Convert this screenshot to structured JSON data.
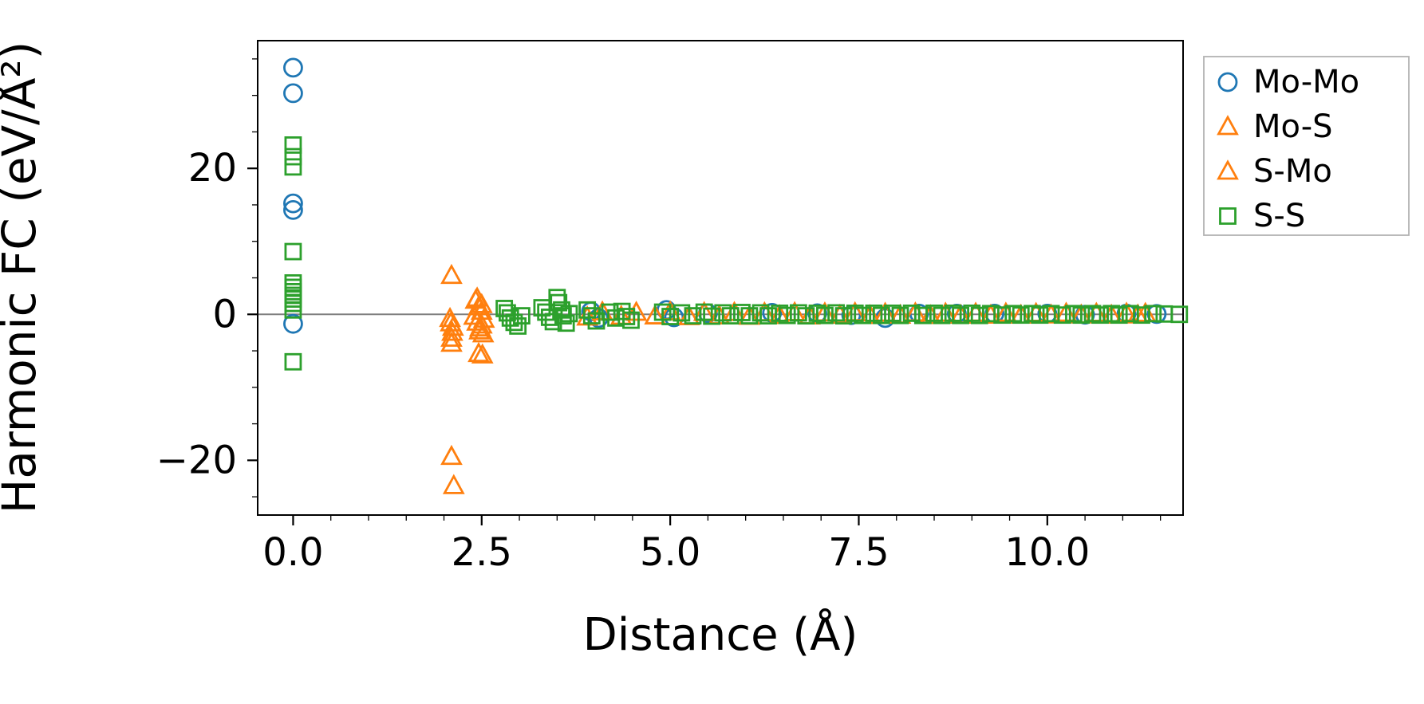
{
  "figure": {
    "background": "#ffffff"
  },
  "chart_data": {
    "type": "scatter",
    "title": "",
    "xlabel": "Distance (Å)",
    "ylabel": "Harmonic FC (eV/Å²)",
    "xlim": [
      -0.47,
      11.8
    ],
    "ylim": [
      -27.5,
      37.5
    ],
    "x_ticks": [
      0,
      2.5,
      5,
      7.5,
      10
    ],
    "x_tick_labels": [
      "0.0",
      "2.5",
      "5.0",
      "7.5",
      "10.0"
    ],
    "y_ticks": [
      -20,
      0,
      20
    ],
    "y_tick_labels": [
      "−20",
      "0",
      "20"
    ],
    "x_minor_step": 0.5,
    "y_minor_step": 5,
    "grid": false,
    "legend_position": "outside-upper-right",
    "zero_line": {
      "y": 0,
      "color": "#7f7f7f"
    },
    "axis_color": "#000000",
    "series": [
      {
        "name": "Mo-Mo",
        "marker": "circle",
        "color": "#1f77b4",
        "points": [
          [
            0,
            33.8
          ],
          [
            0,
            30.3
          ],
          [
            0,
            15.2
          ],
          [
            0,
            14.3
          ],
          [
            0,
            -1.3
          ],
          [
            3.95,
            0.4
          ],
          [
            4.05,
            -0.5
          ],
          [
            4.95,
            0.6
          ],
          [
            5.05,
            -0.4
          ],
          [
            5.5,
            0.15
          ],
          [
            6.35,
            0.2
          ],
          [
            6.95,
            0.15
          ],
          [
            7.4,
            -0.1
          ],
          [
            7.85,
            -0.5
          ],
          [
            8.3,
            0.1
          ],
          [
            8.8,
            0.1
          ],
          [
            9.3,
            0.1
          ],
          [
            10.0,
            0.1
          ],
          [
            10.5,
            -0.05
          ],
          [
            11.05,
            0.1
          ],
          [
            11.45,
            0.05
          ]
        ]
      },
      {
        "name": "Mo-S",
        "marker": "triangle",
        "color": "#ff7f0e",
        "points": [
          [
            2.1,
            5.3
          ],
          [
            2.08,
            -0.6
          ],
          [
            2.12,
            -1.8
          ],
          [
            2.1,
            -3.3
          ],
          [
            2.1,
            -19.5
          ],
          [
            2.13,
            -23.5
          ],
          [
            2.42,
            1.9
          ],
          [
            2.46,
            1.0
          ],
          [
            2.4,
            -0.3
          ],
          [
            2.44,
            -1.1
          ],
          [
            2.48,
            -1.9
          ],
          [
            2.52,
            -2.7
          ],
          [
            2.46,
            -5.4
          ],
          [
            3.9,
            -0.4
          ],
          [
            4.35,
            -0.3
          ],
          [
            4.8,
            -0.25
          ],
          [
            5.25,
            -0.35
          ],
          [
            5.65,
            -0.25
          ],
          [
            6.05,
            -0.3
          ],
          [
            6.45,
            -0.2
          ],
          [
            6.85,
            -0.25
          ],
          [
            7.25,
            -0.15
          ],
          [
            7.65,
            -0.2
          ],
          [
            8.05,
            -0.15
          ],
          [
            8.45,
            -0.2
          ],
          [
            8.85,
            -0.15
          ],
          [
            9.25,
            -0.15
          ],
          [
            9.65,
            -0.15
          ],
          [
            10.05,
            -0.12
          ],
          [
            10.45,
            -0.12
          ],
          [
            10.85,
            -0.15
          ],
          [
            11.2,
            -0.12
          ]
        ]
      },
      {
        "name": "S-Mo",
        "marker": "triangle",
        "color": "#ff7f0e",
        "points": [
          [
            2.09,
            -1.2
          ],
          [
            2.11,
            -2.5
          ],
          [
            2.1,
            -4.0
          ],
          [
            2.44,
            2.2
          ],
          [
            2.5,
            1.3
          ],
          [
            2.5,
            0.4
          ],
          [
            2.53,
            -0.7
          ],
          [
            2.5,
            -1.5
          ],
          [
            2.47,
            -2.3
          ],
          [
            2.51,
            -5.6
          ],
          [
            4.1,
            0.3
          ],
          [
            4.55,
            0.25
          ],
          [
            5.0,
            0.3
          ],
          [
            5.45,
            0.22
          ],
          [
            5.85,
            0.22
          ],
          [
            6.25,
            0.18
          ],
          [
            6.65,
            0.2
          ],
          [
            7.05,
            0.15
          ],
          [
            7.45,
            0.18
          ],
          [
            7.85,
            0.12
          ],
          [
            8.25,
            0.15
          ],
          [
            8.65,
            0.12
          ],
          [
            9.05,
            0.12
          ],
          [
            9.45,
            0.12
          ],
          [
            9.85,
            0.1
          ],
          [
            10.25,
            0.12
          ],
          [
            10.65,
            0.1
          ],
          [
            11.05,
            0.12
          ],
          [
            11.3,
            0.1
          ]
        ]
      },
      {
        "name": "S-S",
        "marker": "square",
        "color": "#2ca02c",
        "points": [
          [
            0,
            23.2
          ],
          [
            0,
            21.6
          ],
          [
            0,
            20.2
          ],
          [
            0,
            8.6
          ],
          [
            0,
            4.3
          ],
          [
            0,
            3.7
          ],
          [
            0,
            3.1
          ],
          [
            0,
            2.6
          ],
          [
            0,
            2.1
          ],
          [
            0,
            1.5
          ],
          [
            0,
            0.6
          ],
          [
            0,
            -6.5
          ],
          [
            2.8,
            0.8
          ],
          [
            2.84,
            0.2
          ],
          [
            2.88,
            -0.5
          ],
          [
            2.93,
            -1.1
          ],
          [
            2.98,
            -1.6
          ],
          [
            3.03,
            -0.2
          ],
          [
            3.3,
            0.9
          ],
          [
            3.35,
            0.3
          ],
          [
            3.4,
            -0.4
          ],
          [
            3.45,
            -1.0
          ],
          [
            3.5,
            2.3
          ],
          [
            3.52,
            1.6
          ],
          [
            3.56,
            0.6
          ],
          [
            3.58,
            -0.2
          ],
          [
            3.62,
            -1.2
          ],
          [
            3.66,
            0.1
          ],
          [
            3.9,
            0.6
          ],
          [
            3.96,
            -0.2
          ],
          [
            4.02,
            -0.9
          ],
          [
            4.2,
            0.3
          ],
          [
            4.28,
            -0.5
          ],
          [
            4.36,
            0.4
          ],
          [
            4.42,
            -0.3
          ],
          [
            4.48,
            -0.8
          ],
          [
            4.9,
            0.3
          ],
          [
            5.0,
            -0.3
          ],
          [
            5.15,
            0.2
          ],
          [
            5.3,
            -0.2
          ],
          [
            5.45,
            0.3
          ],
          [
            5.55,
            -0.25
          ],
          [
            5.7,
            0.2
          ],
          [
            5.8,
            -0.2
          ],
          [
            5.95,
            0.25
          ],
          [
            6.05,
            -0.2
          ],
          [
            6.2,
            0.2
          ],
          [
            6.3,
            -0.2
          ],
          [
            6.45,
            0.15
          ],
          [
            6.55,
            -0.15
          ],
          [
            6.7,
            0.2
          ],
          [
            6.8,
            -0.2
          ],
          [
            6.95,
            0.15
          ],
          [
            7.05,
            -0.15
          ],
          [
            7.2,
            0.2
          ],
          [
            7.3,
            -0.2
          ],
          [
            7.45,
            0.15
          ],
          [
            7.55,
            -0.15
          ],
          [
            7.7,
            0.15
          ],
          [
            7.8,
            -0.15
          ],
          [
            7.95,
            0.15
          ],
          [
            8.05,
            -0.15
          ],
          [
            8.2,
            0.15
          ],
          [
            8.35,
            -0.15
          ],
          [
            8.5,
            0.15
          ],
          [
            8.6,
            -0.15
          ],
          [
            8.75,
            0.15
          ],
          [
            8.85,
            -0.15
          ],
          [
            9.0,
            0.15
          ],
          [
            9.1,
            -0.15
          ],
          [
            9.25,
            0.1
          ],
          [
            9.4,
            -0.1
          ],
          [
            9.55,
            0.1
          ],
          [
            9.65,
            -0.1
          ],
          [
            9.8,
            0.1
          ],
          [
            9.9,
            -0.1
          ],
          [
            10.05,
            0.1
          ],
          [
            10.2,
            -0.1
          ],
          [
            10.35,
            0.1
          ],
          [
            10.45,
            -0.1
          ],
          [
            10.6,
            0.1
          ],
          [
            10.7,
            -0.1
          ],
          [
            10.85,
            0.1
          ],
          [
            10.95,
            -0.1
          ],
          [
            11.1,
            0.1
          ],
          [
            11.25,
            -0.1
          ],
          [
            11.4,
            0.1
          ],
          [
            11.55,
            0.05
          ],
          [
            11.75,
            0.0
          ]
        ]
      }
    ]
  }
}
